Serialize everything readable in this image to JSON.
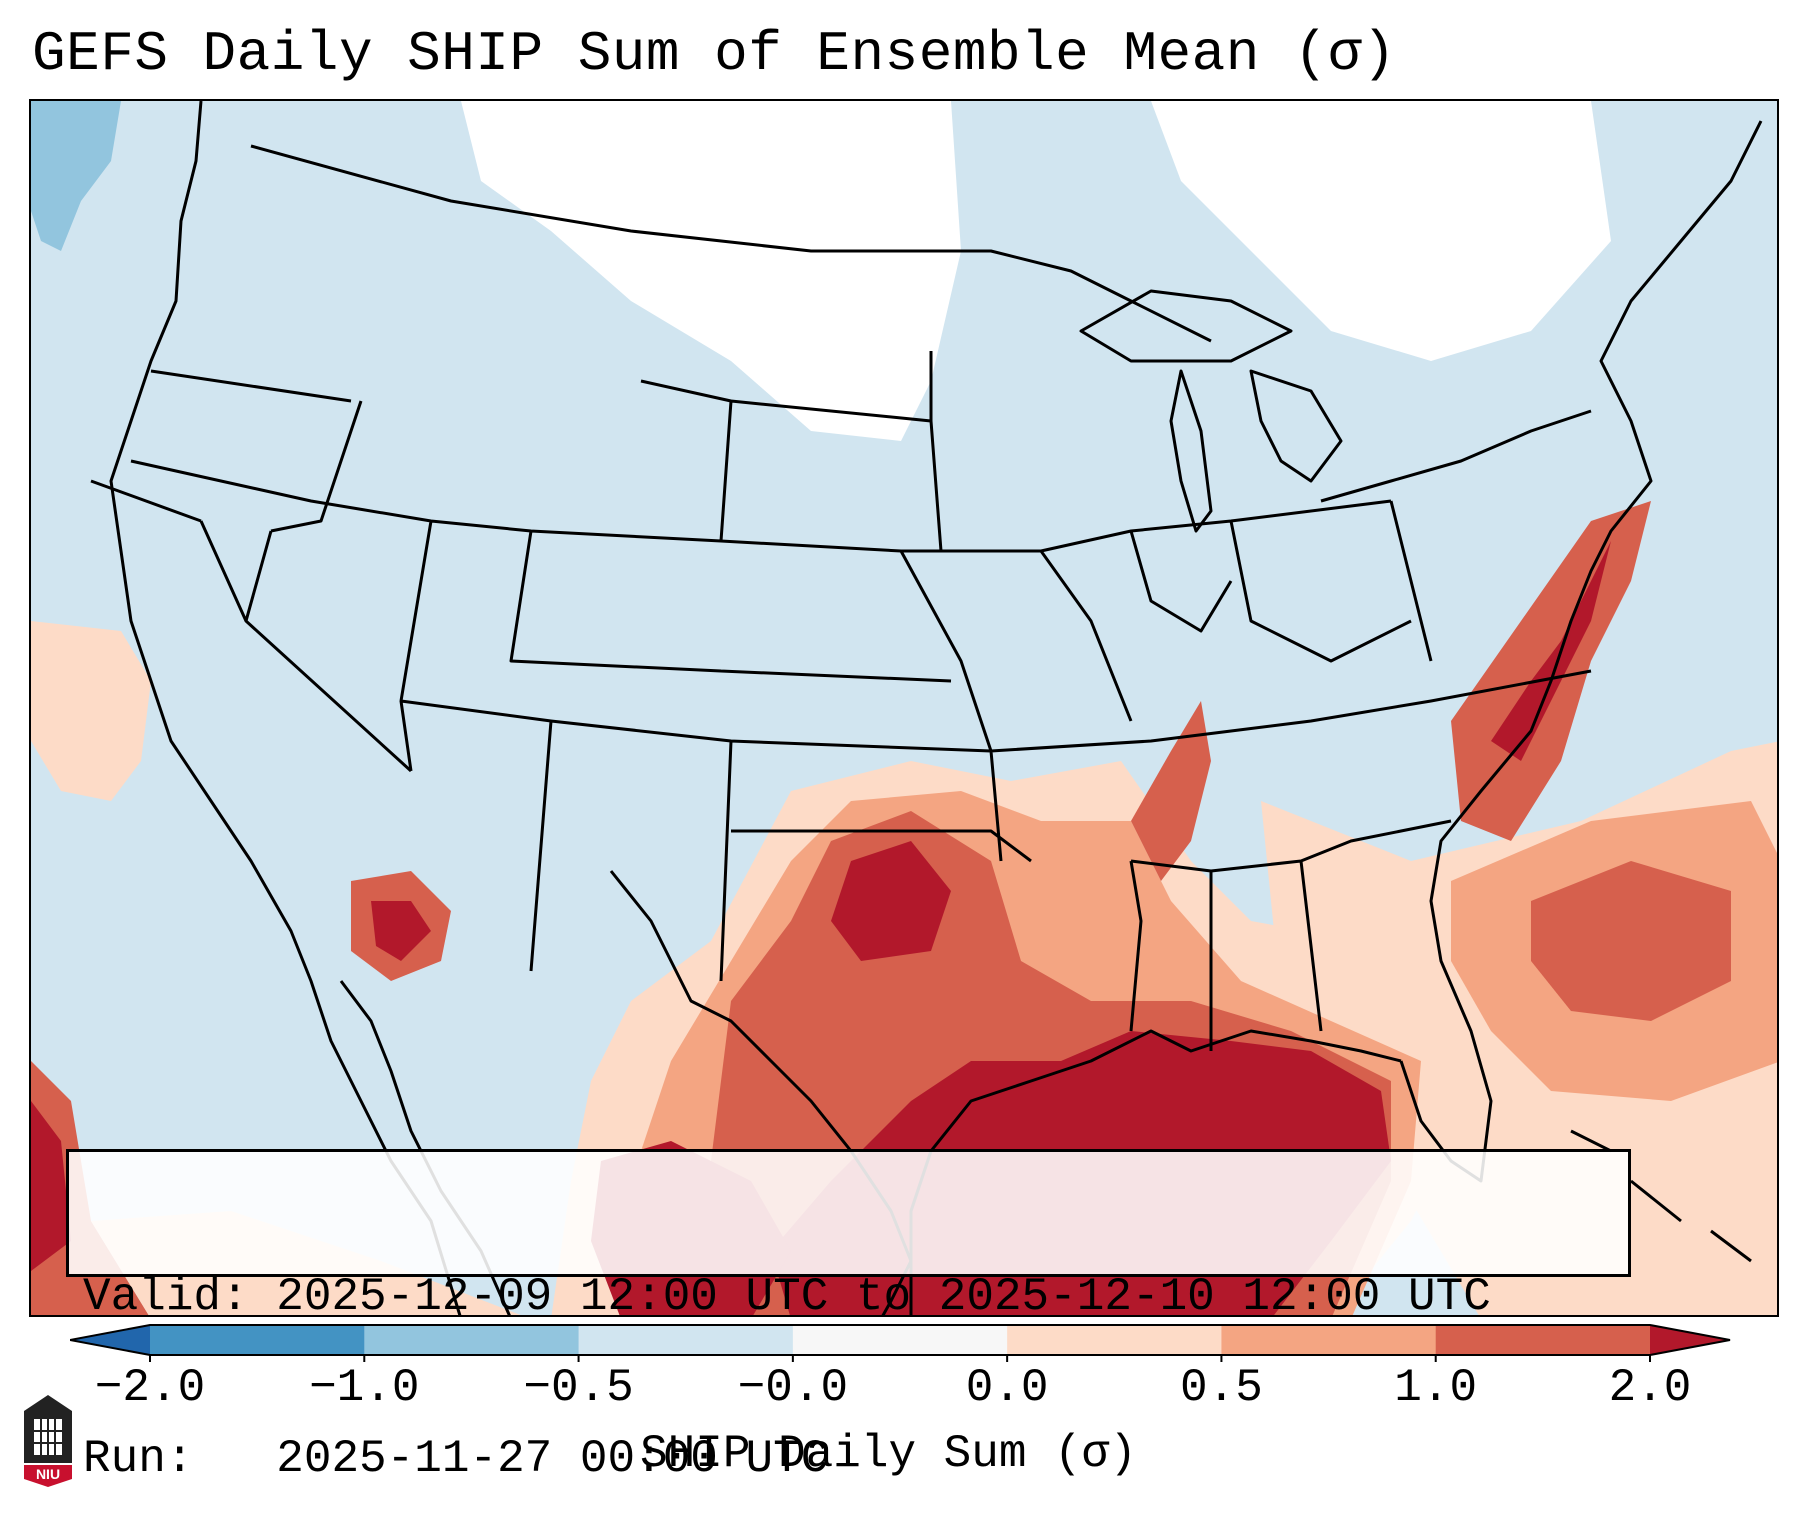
{
  "title": "GEFS Daily SHIP Sum of Ensemble Mean (σ)",
  "info": {
    "valid": "Valid: 2025-12-09 12:00 UTC to 2025-12-10 12:00 UTC",
    "run": "Run:   2025-11-27 00:00 UTC"
  },
  "colorbar": {
    "label": "SHIP Daily Sum (σ)",
    "ticks": [
      "−2.0",
      "−1.0",
      "−0.5",
      "−0.0",
      "0.0",
      "0.5",
      "1.0",
      "2.0"
    ],
    "bins": [
      {
        "color": "#2166ac"
      },
      {
        "color": "#4393c3"
      },
      {
        "color": "#92c5de"
      },
      {
        "color": "#d1e5f0"
      },
      {
        "color": "#f7f7f7"
      },
      {
        "color": "#fddbc7"
      },
      {
        "color": "#f4a582"
      },
      {
        "color": "#d6604d"
      },
      {
        "color": "#b2182b"
      }
    ]
  },
  "map_colors": {
    "land_background": "#d1e5f0",
    "no_anomaly": "#ffffff",
    "light_pos": "#fddbc7",
    "mid_pos": "#f4a582",
    "high_pos": "#d6604d",
    "very_high_pos": "#b2182b",
    "light_neg": "#92c5de",
    "boundary": "#000000"
  },
  "logo": {
    "text": "NIU",
    "name": "niu-logo"
  }
}
